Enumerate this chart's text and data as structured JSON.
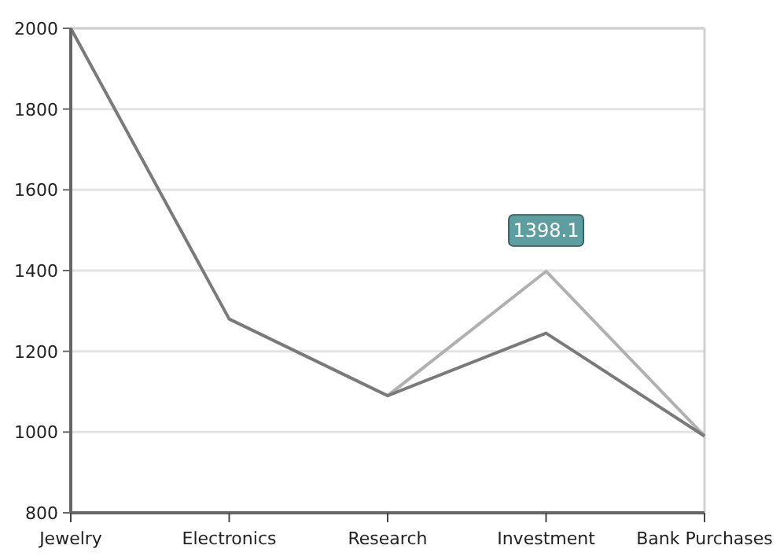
{
  "chart_data": {
    "type": "line",
    "categories": [
      "Jewelry",
      "Electronics",
      "Research",
      "Investment",
      "Bank Purchases"
    ],
    "series": [
      {
        "color": "#b0b0b0",
        "values": [
          null,
          null,
          1090,
          1398.1,
          990
        ],
        "value_labels": [
          null,
          null,
          null,
          "1398.1",
          null
        ]
      },
      {
        "color": "#7a7a7a",
        "values": [
          2000,
          1280,
          1090,
          1245,
          990
        ]
      }
    ],
    "ylim": [
      800,
      2000
    ],
    "yticks": [
      800,
      1000,
      1200,
      1400,
      1600,
      1800,
      2000
    ],
    "grid": "y"
  }
}
